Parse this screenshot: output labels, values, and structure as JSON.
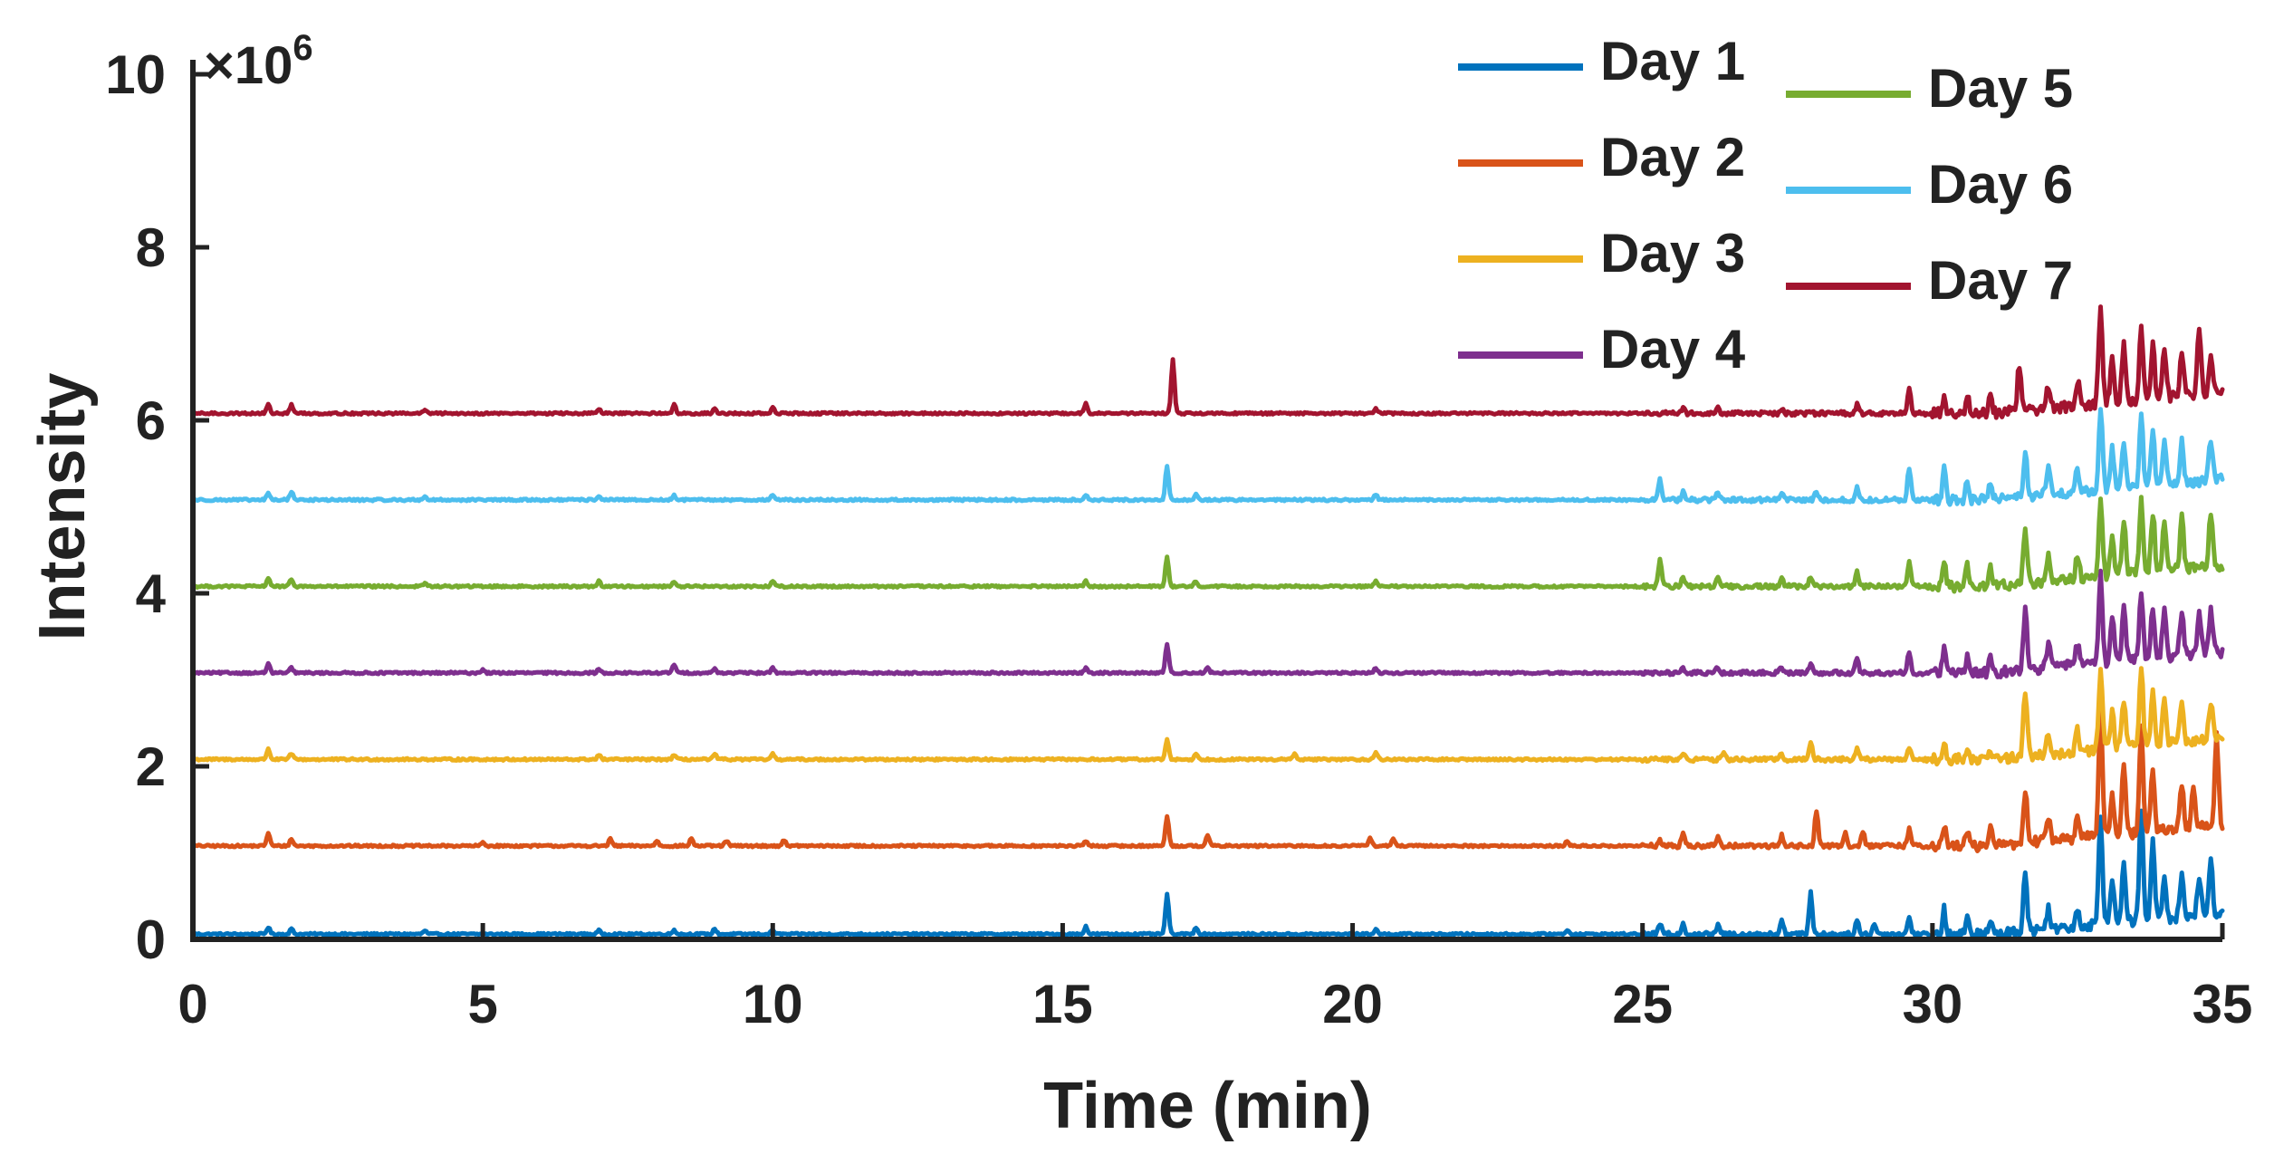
{
  "chart_data": {
    "type": "line",
    "xlabel": "Time (min)",
    "ylabel": "Intensity",
    "y_multiplier": {
      "symbol": "×10",
      "exponent": "6"
    },
    "xlim": [
      0,
      35
    ],
    "ylim": [
      0,
      10000000
    ],
    "x_ticks": [
      0,
      5,
      10,
      15,
      20,
      25,
      30,
      35
    ],
    "x_tick_labels": [
      "0",
      "5",
      "10",
      "15",
      "20",
      "25",
      "30",
      "35"
    ],
    "y_ticks": [
      0,
      2000000,
      4000000,
      6000000,
      8000000,
      10000000
    ],
    "y_tick_labels": [
      "0",
      "2",
      "4",
      "6",
      "8",
      "10"
    ],
    "grid": false,
    "legend_placement": "top-right",
    "series": [
      {
        "name": "Day 1",
        "color": "#0072BD",
        "offset": 60000,
        "baseline": 0,
        "peaks": [
          [
            1.3,
            80000
          ],
          [
            1.7,
            60000
          ],
          [
            4.0,
            40000
          ],
          [
            7.0,
            40000
          ],
          [
            8.3,
            50000
          ],
          [
            9.0,
            60000
          ],
          [
            10.0,
            50000
          ],
          [
            15.4,
            90000
          ],
          [
            16.8,
            460000
          ],
          [
            17.3,
            80000
          ],
          [
            20.4,
            60000
          ],
          [
            23.7,
            50000
          ],
          [
            25.3,
            120000
          ],
          [
            25.7,
            130000
          ],
          [
            26.3,
            100000
          ],
          [
            27.4,
            180000
          ],
          [
            27.9,
            480000
          ],
          [
            28.7,
            160000
          ],
          [
            29.0,
            120000
          ],
          [
            29.6,
            200000
          ],
          [
            30.2,
            280000
          ],
          [
            30.6,
            160000
          ],
          [
            31.0,
            150000
          ],
          [
            31.6,
            700000
          ],
          [
            32.0,
            250000
          ],
          [
            32.5,
            200000
          ],
          [
            32.9,
            1300000
          ],
          [
            33.1,
            550000
          ],
          [
            33.3,
            650000
          ],
          [
            33.6,
            1300000
          ],
          [
            33.8,
            900000
          ],
          [
            34.0,
            500000
          ],
          [
            34.3,
            500000
          ],
          [
            34.6,
            450000
          ],
          [
            34.8,
            620000
          ]
        ]
      },
      {
        "name": "Day 2",
        "color": "#D95319",
        "offset": 1080000,
        "baseline": 0,
        "peaks": [
          [
            1.3,
            150000
          ],
          [
            1.7,
            80000
          ],
          [
            5.0,
            40000
          ],
          [
            7.2,
            80000
          ],
          [
            8.0,
            60000
          ],
          [
            8.6,
            90000
          ],
          [
            9.2,
            60000
          ],
          [
            10.2,
            70000
          ],
          [
            15.4,
            60000
          ],
          [
            16.8,
            350000
          ],
          [
            17.5,
            130000
          ],
          [
            20.3,
            100000
          ],
          [
            20.7,
            80000
          ],
          [
            23.7,
            50000
          ],
          [
            25.3,
            60000
          ],
          [
            25.7,
            150000
          ],
          [
            26.3,
            120000
          ],
          [
            27.4,
            120000
          ],
          [
            28.0,
            420000
          ],
          [
            28.5,
            150000
          ],
          [
            28.8,
            180000
          ],
          [
            29.6,
            200000
          ],
          [
            30.2,
            230000
          ],
          [
            30.6,
            180000
          ],
          [
            31.0,
            200000
          ],
          [
            31.6,
            620000
          ],
          [
            32.0,
            300000
          ],
          [
            32.5,
            250000
          ],
          [
            32.9,
            1450000
          ],
          [
            33.1,
            500000
          ],
          [
            33.3,
            800000
          ],
          [
            33.6,
            1250000
          ],
          [
            33.8,
            700000
          ],
          [
            34.3,
            500000
          ],
          [
            34.5,
            450000
          ],
          [
            34.9,
            1050000
          ]
        ]
      },
      {
        "name": "Day 3",
        "color": "#EDB120",
        "offset": 2080000,
        "baseline": 0,
        "peaks": [
          [
            1.3,
            120000
          ],
          [
            1.7,
            70000
          ],
          [
            7.0,
            50000
          ],
          [
            8.3,
            50000
          ],
          [
            9.0,
            60000
          ],
          [
            10.0,
            60000
          ],
          [
            16.8,
            230000
          ],
          [
            17.3,
            60000
          ],
          [
            19.0,
            60000
          ],
          [
            20.4,
            80000
          ],
          [
            25.7,
            60000
          ],
          [
            26.4,
            60000
          ],
          [
            27.4,
            60000
          ],
          [
            27.9,
            200000
          ],
          [
            28.7,
            130000
          ],
          [
            29.6,
            150000
          ],
          [
            30.2,
            180000
          ],
          [
            30.6,
            120000
          ],
          [
            31.0,
            120000
          ],
          [
            31.6,
            780000
          ],
          [
            32.0,
            250000
          ],
          [
            32.5,
            250000
          ],
          [
            32.9,
            900000
          ],
          [
            33.1,
            420000
          ],
          [
            33.3,
            550000
          ],
          [
            33.6,
            900000
          ],
          [
            33.8,
            650000
          ],
          [
            34.0,
            550000
          ],
          [
            34.3,
            500000
          ],
          [
            34.8,
            450000
          ]
        ]
      },
      {
        "name": "Day 4",
        "color": "#7E2F8E",
        "offset": 3080000,
        "baseline": 0,
        "peaks": [
          [
            1.3,
            100000
          ],
          [
            1.7,
            60000
          ],
          [
            5.0,
            40000
          ],
          [
            7.0,
            40000
          ],
          [
            8.3,
            100000
          ],
          [
            9.0,
            50000
          ],
          [
            10.0,
            60000
          ],
          [
            15.4,
            60000
          ],
          [
            16.8,
            340000
          ],
          [
            17.5,
            60000
          ],
          [
            20.4,
            60000
          ],
          [
            25.7,
            60000
          ],
          [
            26.3,
            60000
          ],
          [
            27.4,
            70000
          ],
          [
            27.9,
            120000
          ],
          [
            28.7,
            160000
          ],
          [
            29.6,
            240000
          ],
          [
            30.2,
            280000
          ],
          [
            30.6,
            200000
          ],
          [
            31.0,
            200000
          ],
          [
            31.6,
            680000
          ],
          [
            32.0,
            300000
          ],
          [
            32.5,
            250000
          ],
          [
            32.9,
            1050000
          ],
          [
            33.1,
            550000
          ],
          [
            33.3,
            600000
          ],
          [
            33.6,
            750000
          ],
          [
            33.8,
            600000
          ],
          [
            34.0,
            600000
          ],
          [
            34.3,
            550000
          ],
          [
            34.6,
            450000
          ],
          [
            34.8,
            500000
          ]
        ]
      },
      {
        "name": "Day 5",
        "color": "#77AC30",
        "offset": 4080000,
        "baseline": 0,
        "peaks": [
          [
            1.3,
            100000
          ],
          [
            1.7,
            80000
          ],
          [
            4.0,
            40000
          ],
          [
            7.0,
            60000
          ],
          [
            8.3,
            60000
          ],
          [
            10.0,
            60000
          ],
          [
            15.4,
            60000
          ],
          [
            16.8,
            340000
          ],
          [
            17.3,
            60000
          ],
          [
            20.4,
            60000
          ],
          [
            25.3,
            300000
          ],
          [
            25.7,
            100000
          ],
          [
            26.3,
            90000
          ],
          [
            27.4,
            80000
          ],
          [
            27.9,
            120000
          ],
          [
            28.7,
            170000
          ],
          [
            29.6,
            280000
          ],
          [
            30.2,
            330000
          ],
          [
            30.6,
            230000
          ],
          [
            31.0,
            200000
          ],
          [
            31.6,
            600000
          ],
          [
            32.0,
            300000
          ],
          [
            32.5,
            250000
          ],
          [
            32.9,
            900000
          ],
          [
            33.1,
            450000
          ],
          [
            33.3,
            600000
          ],
          [
            33.6,
            850000
          ],
          [
            33.8,
            700000
          ],
          [
            34.0,
            600000
          ],
          [
            34.3,
            600000
          ],
          [
            34.8,
            600000
          ]
        ]
      },
      {
        "name": "Day 6",
        "color": "#4DBEEE",
        "offset": 5080000,
        "baseline": 0,
        "peaks": [
          [
            1.3,
            80000
          ],
          [
            1.7,
            100000
          ],
          [
            4.0,
            40000
          ],
          [
            7.0,
            50000
          ],
          [
            8.3,
            50000
          ],
          [
            10.0,
            60000
          ],
          [
            15.4,
            60000
          ],
          [
            16.8,
            400000
          ],
          [
            17.3,
            60000
          ],
          [
            20.4,
            60000
          ],
          [
            25.3,
            250000
          ],
          [
            25.7,
            100000
          ],
          [
            26.3,
            90000
          ],
          [
            27.4,
            70000
          ],
          [
            28.0,
            100000
          ],
          [
            28.7,
            140000
          ],
          [
            29.6,
            380000
          ],
          [
            30.2,
            420000
          ],
          [
            30.6,
            250000
          ],
          [
            31.0,
            200000
          ],
          [
            31.6,
            500000
          ],
          [
            32.0,
            280000
          ],
          [
            32.5,
            250000
          ],
          [
            32.9,
            950000
          ],
          [
            33.1,
            450000
          ],
          [
            33.3,
            550000
          ],
          [
            33.6,
            800000
          ],
          [
            33.8,
            600000
          ],
          [
            34.0,
            550000
          ],
          [
            34.3,
            500000
          ],
          [
            34.8,
            480000
          ]
        ]
      },
      {
        "name": "Day 7",
        "color": "#A2142F",
        "offset": 6080000,
        "baseline": 0,
        "peaks": [
          [
            1.3,
            100000
          ],
          [
            1.7,
            100000
          ],
          [
            4.0,
            40000
          ],
          [
            7.0,
            50000
          ],
          [
            8.3,
            100000
          ],
          [
            9.0,
            50000
          ],
          [
            10.0,
            60000
          ],
          [
            15.4,
            120000
          ],
          [
            16.9,
            620000
          ],
          [
            20.4,
            50000
          ],
          [
            25.7,
            60000
          ],
          [
            26.3,
            60000
          ],
          [
            27.4,
            50000
          ],
          [
            28.7,
            100000
          ],
          [
            29.6,
            300000
          ],
          [
            30.2,
            200000
          ],
          [
            30.6,
            200000
          ],
          [
            31.0,
            200000
          ],
          [
            31.5,
            550000
          ],
          [
            32.0,
            250000
          ],
          [
            32.5,
            300000
          ],
          [
            32.9,
            1150000
          ],
          [
            33.1,
            550000
          ],
          [
            33.3,
            650000
          ],
          [
            33.6,
            800000
          ],
          [
            33.8,
            650000
          ],
          [
            34.0,
            600000
          ],
          [
            34.3,
            500000
          ],
          [
            34.6,
            750000
          ],
          [
            34.8,
            400000
          ]
        ]
      }
    ]
  }
}
